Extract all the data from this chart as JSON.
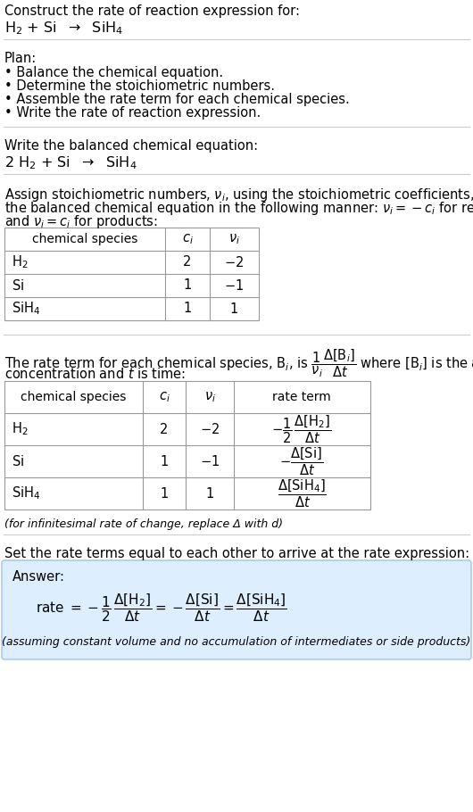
{
  "bg_color": "#ffffff",
  "text_color": "#000000",
  "table_border_color": "#999999",
  "separator_color": "#cccccc",
  "answer_bg_color": "#ddeeff",
  "answer_border_color": "#aaccee",
  "font_size": 10.5,
  "title_line1": "Construct the rate of reaction expression for:",
  "plan_header": "Plan:",
  "plan_items": [
    "• Balance the chemical equation.",
    "• Determine the stoichiometric numbers.",
    "• Assemble the rate term for each chemical species.",
    "• Write the rate of reaction expression."
  ],
  "balanced_header": "Write the balanced chemical equation:",
  "infinitesimal_note": "(for infinitesimal rate of change, replace Δ with d)",
  "set_rate_text": "Set the rate terms equal to each other to arrive at the rate expression:",
  "answer_label": "Answer:",
  "assuming_note": "(assuming constant volume and no accumulation of intermediates or side products)"
}
